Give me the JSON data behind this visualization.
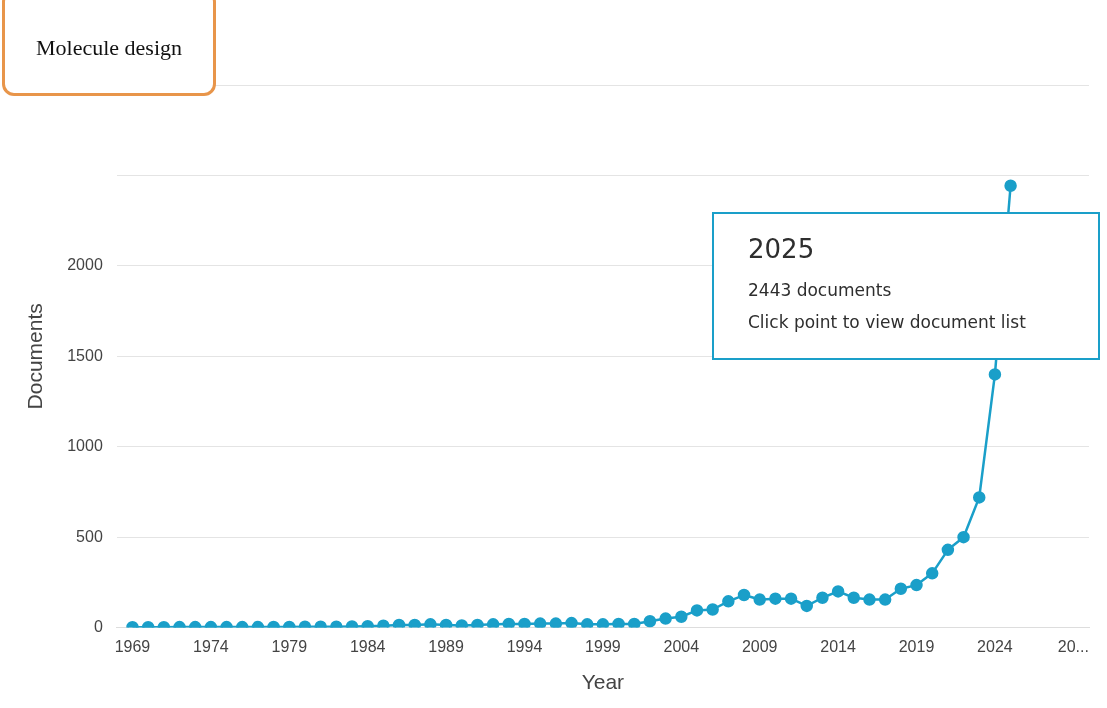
{
  "chart_data": {
    "type": "line",
    "xlabel": "Year",
    "ylabel": "Documents",
    "x": [
      1969,
      1970,
      1971,
      1972,
      1973,
      1974,
      1975,
      1976,
      1977,
      1978,
      1979,
      1980,
      1981,
      1982,
      1983,
      1984,
      1985,
      1986,
      1987,
      1988,
      1989,
      1990,
      1991,
      1992,
      1993,
      1994,
      1995,
      1996,
      1997,
      1998,
      1999,
      2000,
      2001,
      2002,
      2003,
      2004,
      2005,
      2006,
      2007,
      2008,
      2009,
      2010,
      2011,
      2012,
      2013,
      2014,
      2015,
      2016,
      2017,
      2018,
      2019,
      2020,
      2021,
      2022,
      2023,
      2024,
      2025
    ],
    "series": [
      {
        "color": "#1a9fc9",
        "values": [
          2,
          2,
          2,
          3,
          3,
          3,
          3,
          3,
          3,
          4,
          4,
          5,
          5,
          5,
          6,
          8,
          10,
          15,
          15,
          18,
          15,
          12,
          15,
          18,
          20,
          20,
          22,
          22,
          25,
          18,
          18,
          20,
          20,
          35,
          50,
          60,
          95,
          100,
          145,
          180,
          155,
          160,
          160,
          120,
          165,
          200,
          165,
          155,
          155,
          215,
          235,
          300,
          430,
          500,
          720,
          1400,
          2443
        ]
      }
    ],
    "xlim": [
      1968,
      2030
    ],
    "xticks": [
      1969,
      1974,
      1979,
      1984,
      1989,
      1994,
      1999,
      2004,
      2009,
      2014,
      2019,
      2024,
      {
        "value": 2029,
        "label": "20..."
      }
    ],
    "ylim": [
      0,
      3000
    ],
    "yticks": [
      0,
      500,
      1000,
      1500,
      2000,
      {
        "value": 2500,
        "label": null
      },
      {
        "value": 3000,
        "label": null
      }
    ],
    "grid": "y",
    "legend": false,
    "marker": "circle",
    "line_style": "solid",
    "annotations": [
      "Molecule design",
      "2025",
      "2443 documents",
      "Click point to view document list"
    ]
  }
}
